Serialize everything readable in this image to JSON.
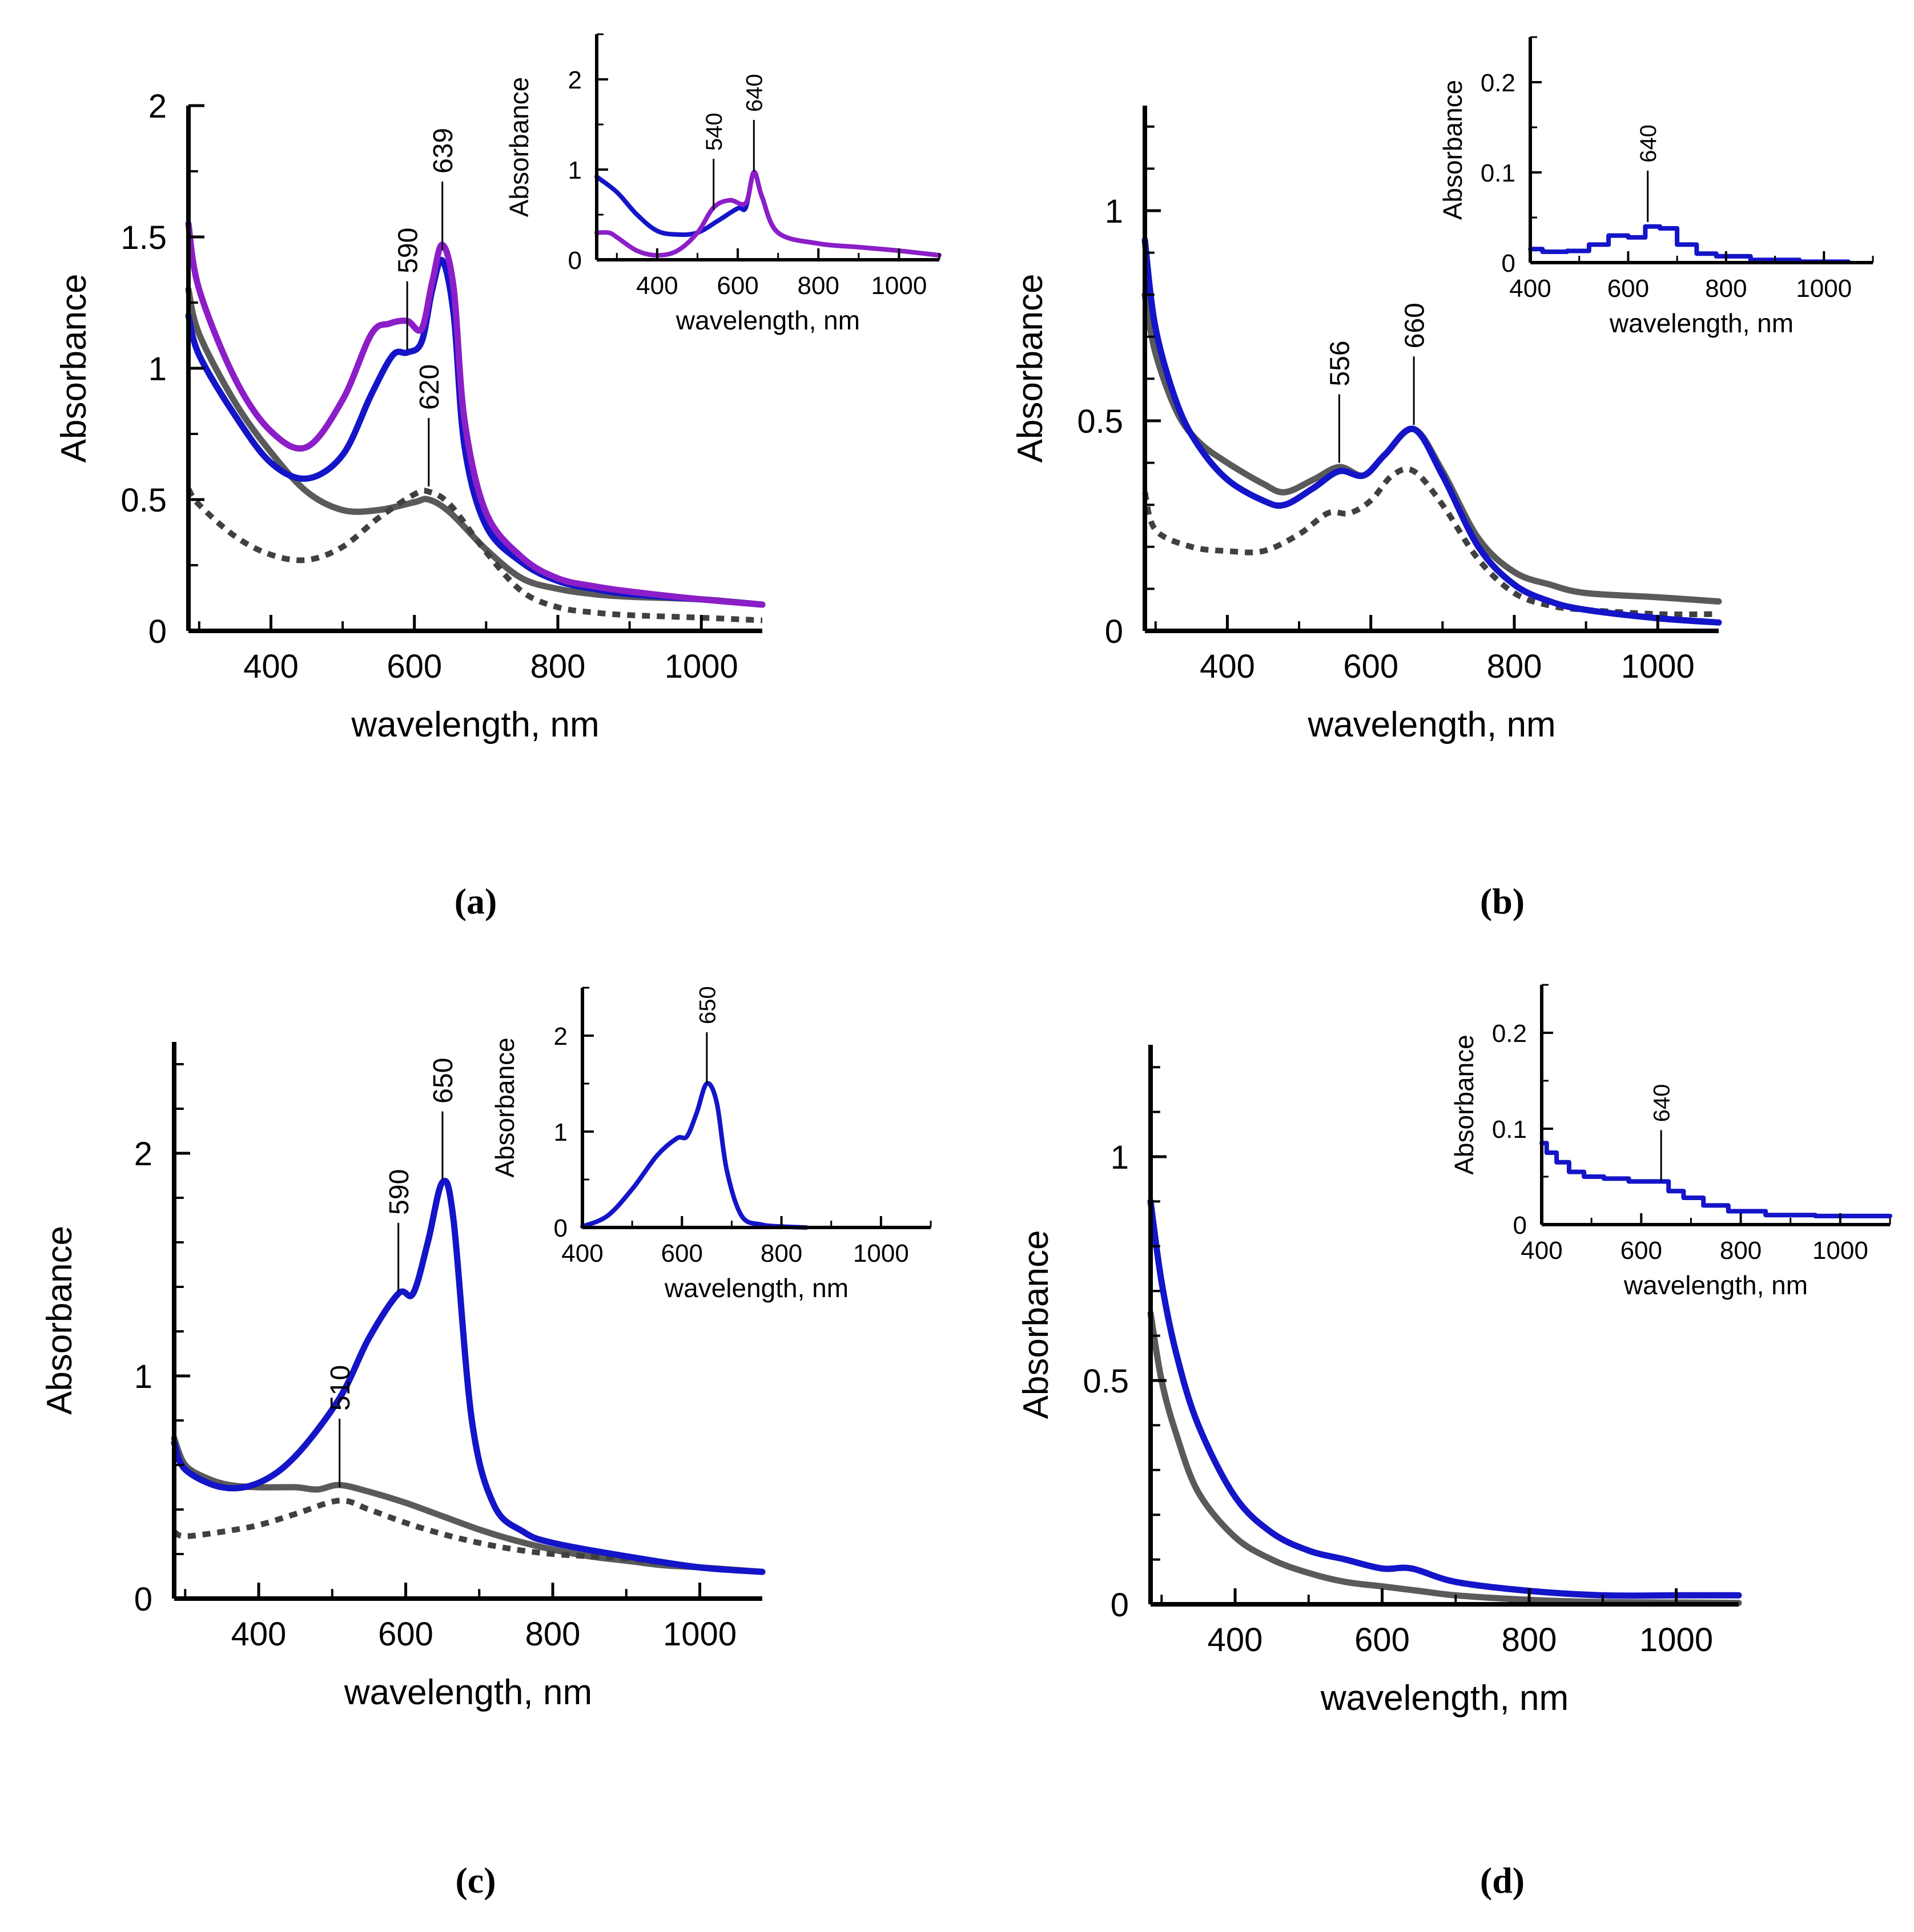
{
  "figure_labels": [
    "(a)",
    "(b)",
    "(c)",
    "(d)"
  ],
  "colors": {
    "blue": "#1414c8",
    "purple": "#8c1ec8",
    "gray": "#5a5a5a",
    "dotted": "#404040"
  },
  "chart_data": [
    {
      "id": "a",
      "panel_label": "(a)",
      "type": "line",
      "xlabel": "wavelength, nm",
      "ylabel": "Absorbance",
      "xlim": [
        285,
        1085
      ],
      "ylim": [
        0,
        2
      ],
      "xticks": [
        400,
        600,
        800,
        1000
      ],
      "yticks": [
        0,
        0.5,
        1,
        1.5,
        2
      ],
      "ytick_labels": [
        "0",
        "0.5",
        "1",
        "1.5",
        "2"
      ],
      "series": [
        {
          "name": "gray solid",
          "style": "gray",
          "x": [
            285,
            300,
            350,
            400,
            450,
            500,
            550,
            600,
            620,
            650,
            700,
            750,
            800,
            850,
            900,
            1000,
            1085
          ],
          "y": [
            1.3,
            1.13,
            0.87,
            0.68,
            0.53,
            0.46,
            0.46,
            0.49,
            0.5,
            0.45,
            0.31,
            0.2,
            0.16,
            0.14,
            0.13,
            0.12,
            0.1
          ]
        },
        {
          "name": "gray dotted",
          "style": "dotted",
          "x": [
            285,
            300,
            350,
            400,
            450,
            500,
            550,
            600,
            620,
            650,
            700,
            750,
            800,
            850,
            900,
            1000,
            1085
          ],
          "y": [
            0.54,
            0.48,
            0.36,
            0.29,
            0.27,
            0.32,
            0.43,
            0.52,
            0.53,
            0.48,
            0.3,
            0.15,
            0.09,
            0.07,
            0.06,
            0.05,
            0.04
          ]
        },
        {
          "name": "blue",
          "style": "blue",
          "x": [
            285,
            300,
            350,
            400,
            450,
            500,
            540,
            570,
            590,
            610,
            625,
            639,
            655,
            670,
            700,
            750,
            800,
            850,
            900,
            1000,
            1085
          ],
          "y": [
            1.2,
            1.05,
            0.82,
            0.64,
            0.58,
            0.67,
            0.9,
            1.05,
            1.06,
            1.1,
            1.3,
            1.41,
            1.2,
            0.7,
            0.4,
            0.26,
            0.19,
            0.16,
            0.14,
            0.12,
            0.1
          ]
        },
        {
          "name": "purple",
          "style": "purple",
          "x": [
            285,
            300,
            350,
            400,
            450,
            500,
            540,
            565,
            590,
            610,
            625,
            639,
            655,
            670,
            700,
            750,
            800,
            850,
            900,
            1000,
            1085
          ],
          "y": [
            1.55,
            1.3,
            0.96,
            0.76,
            0.7,
            0.88,
            1.13,
            1.17,
            1.18,
            1.15,
            1.33,
            1.47,
            1.3,
            0.8,
            0.45,
            0.28,
            0.2,
            0.17,
            0.15,
            0.12,
            0.1
          ]
        }
      ],
      "annotations": [
        {
          "text": "590",
          "x": 590,
          "y": 1.07
        },
        {
          "text": "639",
          "x": 639,
          "y": 1.45
        },
        {
          "text": "620",
          "x": 620,
          "y": 0.55
        }
      ],
      "inset": {
        "xlabel": "wavelength, nm",
        "ylabel": "Absorbance",
        "xlim": [
          250,
          1100
        ],
        "ylim": [
          0,
          2.5
        ],
        "xticks": [
          400,
          600,
          800,
          1000
        ],
        "yticks": [
          0,
          1,
          2
        ],
        "ytick_labels": [
          "0",
          "1",
          "2"
        ],
        "series": [
          {
            "name": "blue",
            "style": "blue",
            "x": [
              250,
              300,
              350,
              400,
              450,
              500,
              550,
              600,
              620,
              640,
              660,
              700,
              800,
              900,
              1000,
              1100
            ],
            "y": [
              0.92,
              0.75,
              0.5,
              0.32,
              0.28,
              0.3,
              0.43,
              0.57,
              0.58,
              0.97,
              0.7,
              0.3,
              0.18,
              0.14,
              0.1,
              0.05
            ]
          },
          {
            "name": "purple",
            "style": "purple",
            "x": [
              250,
              280,
              300,
              350,
              400,
              450,
              500,
              540,
              580,
              620,
              640,
              660,
              700,
              800,
              900,
              1000,
              1100
            ],
            "y": [
              0.3,
              0.3,
              0.25,
              0.1,
              0.05,
              0.1,
              0.3,
              0.58,
              0.66,
              0.63,
              0.97,
              0.7,
              0.3,
              0.18,
              0.14,
              0.1,
              0.05
            ]
          }
        ],
        "annotations": [
          {
            "text": "540",
            "x": 540,
            "y": 0.55
          },
          {
            "text": "640",
            "x": 640,
            "y": 0.98
          }
        ]
      }
    },
    {
      "id": "b",
      "panel_label": "(b)",
      "type": "line",
      "xlabel": "wavelength, nm",
      "ylabel": "Absorbance",
      "xlim": [
        285,
        1085
      ],
      "ylim": [
        0,
        1.25
      ],
      "xticks": [
        400,
        600,
        800,
        1000
      ],
      "yticks": [
        0,
        0.5,
        1
      ],
      "minor_yticks": [
        0.1,
        0.2,
        0.3,
        0.4,
        0.6,
        0.7,
        0.8,
        0.9,
        1.1,
        1.2
      ],
      "ytick_labels": [
        "0",
        "0.5",
        "1"
      ],
      "series": [
        {
          "name": "gray solid",
          "style": "gray",
          "x": [
            285,
            300,
            330,
            360,
            400,
            450,
            480,
            520,
            556,
            590,
            620,
            660,
            700,
            750,
            800,
            850,
            900,
            1000,
            1085
          ],
          "y": [
            0.8,
            0.66,
            0.52,
            0.45,
            0.4,
            0.35,
            0.33,
            0.36,
            0.39,
            0.37,
            0.42,
            0.48,
            0.38,
            0.22,
            0.14,
            0.11,
            0.09,
            0.08,
            0.07
          ]
        },
        {
          "name": "gray dotted",
          "style": "dotted",
          "x": [
            285,
            300,
            350,
            400,
            450,
            500,
            540,
            570,
            600,
            630,
            660,
            700,
            750,
            800,
            850,
            900,
            1000,
            1085
          ],
          "y": [
            0.33,
            0.24,
            0.2,
            0.19,
            0.19,
            0.23,
            0.28,
            0.28,
            0.31,
            0.37,
            0.38,
            0.3,
            0.17,
            0.09,
            0.06,
            0.05,
            0.04,
            0.04
          ]
        },
        {
          "name": "blue",
          "style": "blue",
          "x": [
            285,
            300,
            330,
            360,
            400,
            450,
            480,
            520,
            556,
            590,
            620,
            660,
            700,
            750,
            800,
            850,
            900,
            1000,
            1085
          ],
          "y": [
            0.93,
            0.72,
            0.54,
            0.44,
            0.36,
            0.31,
            0.3,
            0.34,
            0.38,
            0.37,
            0.42,
            0.48,
            0.37,
            0.2,
            0.11,
            0.07,
            0.05,
            0.03,
            0.02
          ]
        }
      ],
      "annotations": [
        {
          "text": "556",
          "x": 556,
          "y": 0.4
        },
        {
          "text": "660",
          "x": 660,
          "y": 0.49
        }
      ],
      "inset": {
        "xlabel": "wavelength, nm",
        "ylabel": "Absorbance",
        "xlim": [
          400,
          1100
        ],
        "ylim": [
          0,
          0.25
        ],
        "xticks": [
          400,
          600,
          800,
          1000
        ],
        "yticks": [
          0,
          0.1,
          0.2
        ],
        "ytick_labels": [
          "0",
          "0.1",
          "0.2"
        ],
        "series": [
          {
            "name": "blue",
            "style": "blue",
            "x": [
              400,
              450,
              500,
              540,
              580,
              620,
              650,
              680,
              720,
              760,
              800,
              900,
              1000,
              1050
            ],
            "y": [
              0.015,
              0.012,
              0.013,
              0.02,
              0.03,
              0.028,
              0.04,
              0.038,
              0.02,
              0.01,
              0.007,
              0.003,
              0.001,
              0.001
            ]
          }
        ],
        "annotations": [
          {
            "text": "640",
            "x": 640,
            "y": 0.045
          }
        ]
      }
    },
    {
      "id": "c",
      "panel_label": "(c)",
      "type": "line",
      "xlabel": "wavelength, nm",
      "ylabel": "Absorbance",
      "xlim": [
        285,
        1085
      ],
      "ylim": [
        0,
        2.5
      ],
      "xticks": [
        400,
        600,
        800,
        1000
      ],
      "yticks": [
        0,
        1,
        2
      ],
      "minor_yticks": [
        0.2,
        0.4,
        0.6,
        0.8,
        1.2,
        1.4,
        1.6,
        1.8,
        2.2,
        2.4
      ],
      "ytick_labels": [
        "0",
        "1",
        "2"
      ],
      "series": [
        {
          "name": "gray solid",
          "style": "gray",
          "x": [
            285,
            300,
            330,
            360,
            400,
            450,
            480,
            510,
            550,
            600,
            650,
            700,
            750,
            800,
            850,
            900,
            950,
            1000,
            1085
          ],
          "y": [
            0.72,
            0.6,
            0.54,
            0.51,
            0.5,
            0.5,
            0.49,
            0.51,
            0.48,
            0.43,
            0.37,
            0.31,
            0.26,
            0.22,
            0.19,
            0.17,
            0.15,
            0.14,
            0.12
          ]
        },
        {
          "name": "gray dotted",
          "style": "dotted",
          "x": [
            285,
            300,
            350,
            400,
            450,
            510,
            550,
            600,
            650,
            700,
            750,
            800,
            850,
            900,
            950,
            1000,
            1085
          ],
          "y": [
            0.3,
            0.28,
            0.3,
            0.33,
            0.38,
            0.44,
            0.4,
            0.34,
            0.29,
            0.25,
            0.22,
            0.2,
            0.19,
            0.18,
            0.16,
            0.14,
            0.12
          ]
        },
        {
          "name": "blue",
          "style": "blue",
          "x": [
            285,
            300,
            350,
            400,
            450,
            510,
            550,
            590,
            610,
            630,
            650,
            665,
            690,
            720,
            760,
            800,
            900,
            1000,
            1085
          ],
          "y": [
            0.7,
            0.58,
            0.5,
            0.52,
            0.64,
            0.9,
            1.17,
            1.37,
            1.37,
            1.6,
            1.87,
            1.7,
            0.8,
            0.42,
            0.3,
            0.25,
            0.19,
            0.14,
            0.12
          ]
        }
      ],
      "annotations": [
        {
          "text": "510",
          "x": 510,
          "y": 0.5
        },
        {
          "text": "590",
          "x": 590,
          "y": 1.38
        },
        {
          "text": "650",
          "x": 650,
          "y": 1.88
        }
      ],
      "inset": {
        "xlabel": "wavelength, nm",
        "ylabel": "Absorbance",
        "xlim": [
          400,
          1100
        ],
        "ylim": [
          0,
          2.5
        ],
        "xticks": [
          400,
          600,
          800,
          1000
        ],
        "yticks": [
          0,
          1,
          2
        ],
        "ytick_labels": [
          "0",
          "1",
          "2"
        ],
        "series": [
          {
            "name": "blue",
            "style": "blue",
            "x": [
              400,
              450,
              500,
              550,
              590,
              610,
              630,
              650,
              670,
              690,
              720,
              760,
              800,
              850
            ],
            "y": [
              0.01,
              0.12,
              0.4,
              0.75,
              0.93,
              0.95,
              1.2,
              1.5,
              1.3,
              0.6,
              0.12,
              0.03,
              0.01,
              0.0
            ]
          }
        ],
        "annotations": [
          {
            "text": "650",
            "x": 650,
            "y": 1.5
          }
        ]
      }
    },
    {
      "id": "d",
      "panel_label": "(d)",
      "type": "line",
      "xlabel": "wavelength, nm",
      "ylabel": "Absorbance",
      "xlim": [
        285,
        1085
      ],
      "ylim": [
        0,
        1.25
      ],
      "xticks": [
        400,
        600,
        800,
        1000
      ],
      "yticks": [
        0,
        0.5,
        1
      ],
      "minor_yticks": [
        0.1,
        0.2,
        0.3,
        0.4,
        0.6,
        0.7,
        0.8,
        0.9,
        1.1,
        1.2
      ],
      "ytick_labels": [
        "0",
        "0.5",
        "1"
      ],
      "series": [
        {
          "name": "gray solid",
          "style": "gray",
          "x": [
            285,
            300,
            320,
            350,
            400,
            450,
            500,
            550,
            600,
            650,
            700,
            800,
            900,
            1000,
            1085
          ],
          "y": [
            0.65,
            0.5,
            0.38,
            0.25,
            0.15,
            0.1,
            0.07,
            0.05,
            0.04,
            0.03,
            0.02,
            0.01,
            0.005,
            0.004,
            0.003
          ]
        },
        {
          "name": "blue",
          "style": "blue",
          "x": [
            285,
            300,
            320,
            350,
            400,
            450,
            500,
            550,
            600,
            640,
            700,
            800,
            900,
            1000,
            1085
          ],
          "y": [
            0.9,
            0.72,
            0.56,
            0.4,
            0.24,
            0.16,
            0.12,
            0.1,
            0.08,
            0.08,
            0.05,
            0.03,
            0.02,
            0.02,
            0.02
          ]
        }
      ],
      "annotations": [],
      "inset": {
        "xlabel": "wavelength, nm",
        "ylabel": "Absorbance",
        "xlim": [
          400,
          1100
        ],
        "ylim": [
          0,
          0.25
        ],
        "xticks": [
          400,
          600,
          800,
          1000
        ],
        "yticks": [
          0,
          0.1,
          0.2
        ],
        "ytick_labels": [
          "0",
          "0.1",
          "0.2"
        ],
        "series": [
          {
            "name": "blue",
            "style": "blue",
            "x": [
              400,
              420,
              440,
              470,
              500,
              550,
              600,
              640,
              670,
              700,
              750,
              800,
              900,
              1000,
              1100
            ],
            "y": [
              0.085,
              0.075,
              0.065,
              0.055,
              0.05,
              0.048,
              0.045,
              0.045,
              0.035,
              0.028,
              0.02,
              0.014,
              0.01,
              0.009,
              0.009
            ]
          }
        ],
        "annotations": [
          {
            "text": "640",
            "x": 640,
            "y": 0.045
          }
        ]
      }
    }
  ]
}
